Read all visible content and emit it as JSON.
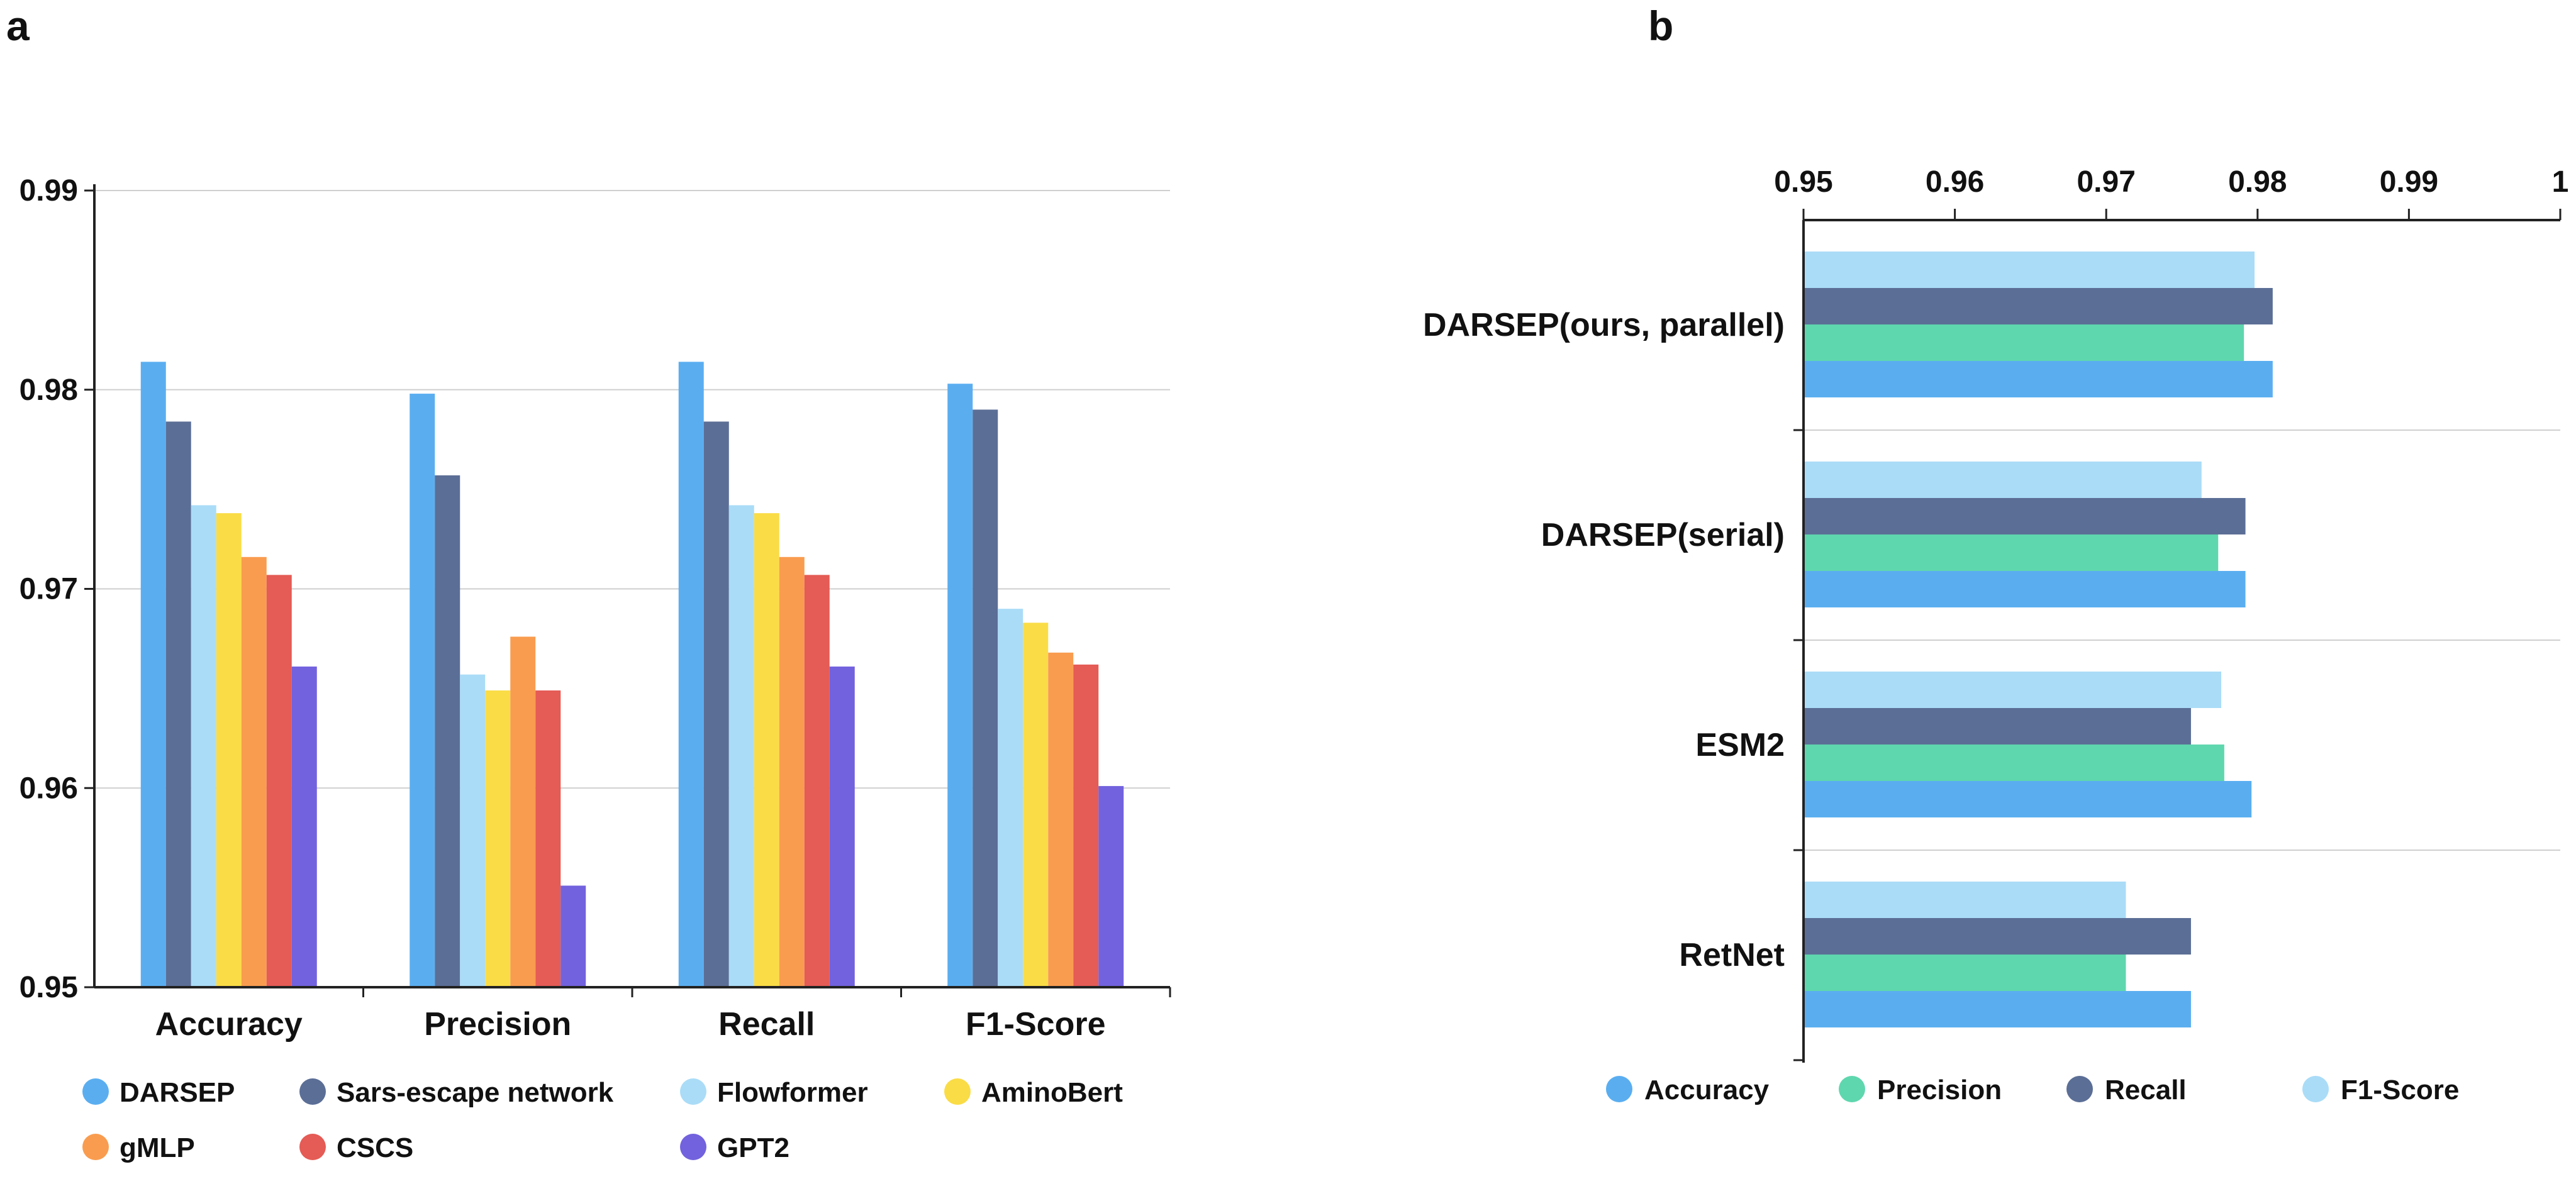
{
  "palette": {
    "DARSEP": "#5aaef0",
    "Sars-escape network": "#5b6e96",
    "Flowformer": "#aadcf7",
    "AminoBert": "#fadc46",
    "gMLP": "#f99c4f",
    "CSCS": "#e55b55",
    "GPT2": "#7262dd",
    "Accuracy": "#5aaef0",
    "Precision": "#5fd7ae",
    "Recall": "#5b6e96",
    "F1-Score": "#aadcf7"
  },
  "chart_data": [
    {
      "panel": "a",
      "type": "bar",
      "orientation": "vertical",
      "categories": [
        "Accuracy",
        "Precision",
        "Recall",
        "F1-Score"
      ],
      "ylim": [
        0.95,
        0.99
      ],
      "yticks": [
        "0.95",
        "0.96",
        "0.97",
        "0.98",
        "0.99"
      ],
      "grid": true,
      "legend_position": "bottom",
      "series": [
        {
          "name": "DARSEP",
          "values": [
            0.9814,
            0.9798,
            0.9814,
            0.9803
          ]
        },
        {
          "name": "Sars-escape network",
          "values": [
            0.9784,
            0.9757,
            0.9784,
            0.979
          ]
        },
        {
          "name": "Flowformer",
          "values": [
            0.9742,
            0.9657,
            0.9742,
            0.969
          ]
        },
        {
          "name": "AminoBert",
          "values": [
            0.9738,
            0.9649,
            0.9738,
            0.9683
          ]
        },
        {
          "name": "gMLP",
          "values": [
            0.9716,
            0.9676,
            0.9716,
            0.9668
          ]
        },
        {
          "name": "CSCS",
          "values": [
            0.9707,
            0.9649,
            0.9707,
            0.9662
          ]
        },
        {
          "name": "GPT2",
          "values": [
            0.9661,
            0.9551,
            0.9661,
            0.9601
          ]
        }
      ]
    },
    {
      "panel": "b",
      "type": "bar",
      "orientation": "horizontal",
      "categories": [
        "DARSEP(ours, parallel)",
        "DARSEP(serial)",
        "ESM2",
        "RetNet"
      ],
      "xlim": [
        0.95,
        1.0
      ],
      "xticks": [
        "0.95",
        "0.96",
        "0.97",
        "0.98",
        "0.99",
        "1"
      ],
      "axis_position": "top",
      "grid": true,
      "legend_position": "bottom",
      "series": [
        {
          "name": "Accuracy",
          "values": [
            0.981,
            0.9792,
            0.9796,
            0.9756
          ]
        },
        {
          "name": "Precision",
          "values": [
            0.9791,
            0.9774,
            0.9778,
            0.9713
          ]
        },
        {
          "name": "Recall",
          "values": [
            0.981,
            0.9792,
            0.9756,
            0.9756
          ]
        },
        {
          "name": "F1-Score",
          "values": [
            0.9798,
            0.9763,
            0.9776,
            0.9713
          ]
        }
      ],
      "bar_stack_order_top_to_bottom": [
        "F1-Score",
        "Recall",
        "Precision",
        "Accuracy"
      ]
    }
  ]
}
